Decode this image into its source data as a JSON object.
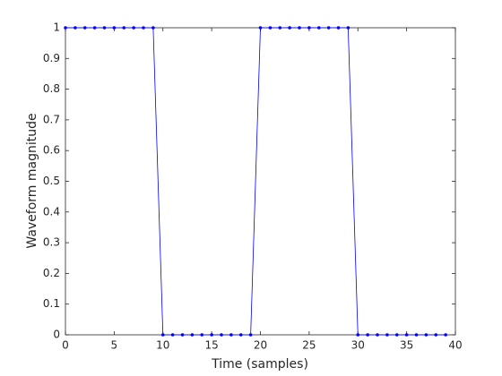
{
  "chart_data": {
    "type": "line",
    "xlabel": "Time (samples)",
    "ylabel": "Waveform magnitude",
    "x": [
      0,
      1,
      2,
      3,
      4,
      5,
      6,
      7,
      8,
      9,
      10,
      11,
      12,
      13,
      14,
      15,
      16,
      17,
      18,
      19,
      20,
      21,
      22,
      23,
      24,
      25,
      26,
      27,
      28,
      29,
      30,
      31,
      32,
      33,
      34,
      35,
      36,
      37,
      38,
      39
    ],
    "series": [
      {
        "color": "#0000ff",
        "values": [
          1,
          1,
          1,
          1,
          1,
          1,
          1,
          1,
          1,
          1,
          0,
          0,
          0,
          0,
          0,
          0,
          0,
          0,
          0,
          0,
          1,
          1,
          1,
          1,
          1,
          1,
          1,
          1,
          1,
          1,
          0,
          0,
          0,
          0,
          0,
          0,
          0,
          0,
          0,
          0
        ]
      }
    ],
    "xlim": [
      0,
      40
    ],
    "xticks": [
      0,
      5,
      10,
      15,
      20,
      25,
      30,
      35,
      40
    ],
    "ylim": [
      0,
      1
    ],
    "yticks": [
      0,
      0.1,
      0.2,
      0.3,
      0.4,
      0.5,
      0.6,
      0.7,
      0.8,
      0.9,
      1
    ],
    "grid": false
  }
}
